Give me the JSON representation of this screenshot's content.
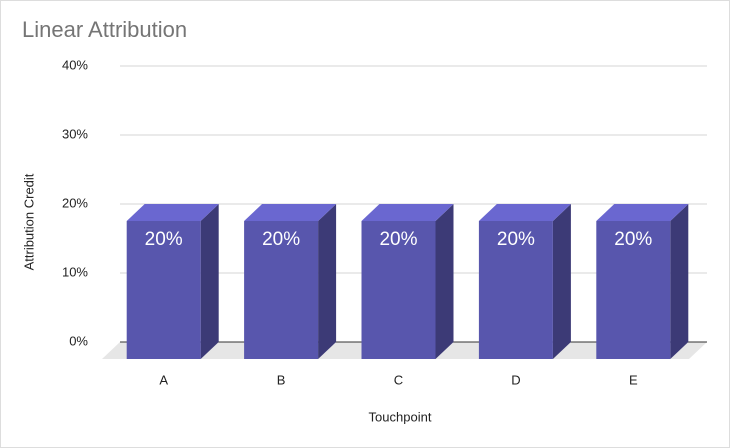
{
  "chart_data": {
    "type": "bar3d",
    "title": "Linear Attribution",
    "x_label": "Touchpoint",
    "y_label": "Attribution Credit",
    "categories": [
      "A",
      "B",
      "C",
      "D",
      "E"
    ],
    "values": [
      20,
      20,
      20,
      20,
      20
    ],
    "value_labels": [
      "20%",
      "20%",
      "20%",
      "20%",
      "20%"
    ],
    "color": "#5856ad",
    "ylim": [
      0,
      40
    ],
    "yticks": [
      {
        "value": 0,
        "label": "0%"
      },
      {
        "value": 10,
        "label": "10%"
      },
      {
        "value": 20,
        "label": "20%"
      },
      {
        "value": 30,
        "label": "30%"
      },
      {
        "value": 40,
        "label": "40%"
      }
    ],
    "grid": true
  }
}
